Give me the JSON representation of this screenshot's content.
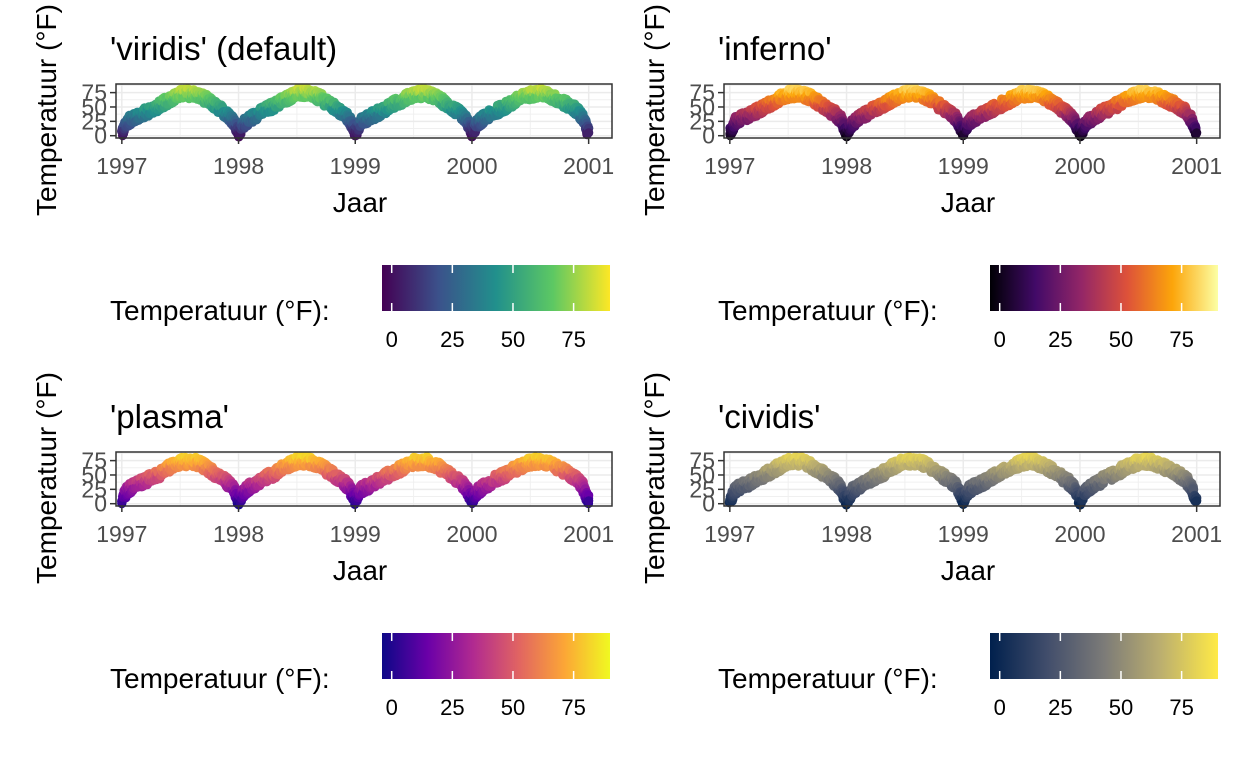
{
  "chart_data": [
    {
      "type": "scatter",
      "title": "'viridis' (default)",
      "xlabel": "Jaar",
      "ylabel": "Temperatuur (°F)",
      "xlim": [
        1996.95,
        2001.2
      ],
      "ylim": [
        -4,
        90
      ],
      "x_ticks": [
        "1997",
        "1998",
        "1999",
        "2000",
        "2001"
      ],
      "y_ticks": [
        "0",
        "25",
        "50",
        "75"
      ],
      "legend": {
        "title": "Temperatuur (°F):",
        "position": "bottom",
        "ticks": [
          "0",
          "25",
          "50",
          "75"
        ],
        "range": [
          -4,
          90
        ]
      },
      "palette": [
        "#440154",
        "#3b528b",
        "#21908c",
        "#5dc863",
        "#fde725"
      ],
      "series": [
        {
          "x": [
            1997.0,
            1997.05,
            1997.1,
            1997.2,
            1997.3,
            1997.4,
            1997.5,
            1997.6,
            1997.7,
            1997.8,
            1997.9,
            1997.95,
            1998.0,
            1998.05,
            1998.1,
            1998.2,
            1998.3,
            1998.4,
            1998.5,
            1998.6,
            1998.7,
            1998.8,
            1998.9,
            1998.95,
            1999.0,
            1999.05,
            1999.1,
            1999.2,
            1999.3,
            1999.4,
            1999.5,
            1999.6,
            1999.7,
            1999.8,
            1999.9,
            1999.95,
            2000.0,
            2000.05,
            2000.1,
            2000.2,
            2000.3,
            2000.4,
            2000.5,
            2000.6,
            2000.7,
            2000.8,
            2000.9,
            2000.95,
            2001.0
          ],
          "y": [
            5,
            25,
            30,
            40,
            50,
            62,
            72,
            74,
            66,
            52,
            38,
            28,
            5,
            22,
            30,
            42,
            52,
            64,
            74,
            74,
            66,
            52,
            38,
            28,
            5,
            25,
            30,
            40,
            52,
            62,
            72,
            74,
            66,
            52,
            38,
            28,
            5,
            22,
            30,
            42,
            52,
            64,
            72,
            74,
            66,
            56,
            44,
            30,
            5
          ]
        }
      ]
    },
    {
      "type": "scatter",
      "title": "'inferno'",
      "xlabel": "Jaar",
      "ylabel": "Temperatuur (°F)",
      "xlim": [
        1996.95,
        2001.2
      ],
      "ylim": [
        -4,
        90
      ],
      "x_ticks": [
        "1997",
        "1998",
        "1999",
        "2000",
        "2001"
      ],
      "y_ticks": [
        "0",
        "25",
        "50",
        "75"
      ],
      "legend": {
        "title": "Temperatuur (°F):",
        "position": "bottom",
        "ticks": [
          "0",
          "25",
          "50",
          "75"
        ],
        "range": [
          -4,
          90
        ]
      },
      "palette": [
        "#000004",
        "#420a68",
        "#932667",
        "#dd513a",
        "#fca50a",
        "#fcffa4"
      ],
      "series": [
        {
          "x": [
            1997.0,
            1997.05,
            1997.1,
            1997.2,
            1997.3,
            1997.4,
            1997.5,
            1997.6,
            1997.7,
            1997.8,
            1997.9,
            1997.95,
            1998.0,
            1998.05,
            1998.1,
            1998.2,
            1998.3,
            1998.4,
            1998.5,
            1998.6,
            1998.7,
            1998.8,
            1998.9,
            1998.95,
            1999.0,
            1999.05,
            1999.1,
            1999.2,
            1999.3,
            1999.4,
            1999.5,
            1999.6,
            1999.7,
            1999.8,
            1999.9,
            1999.95,
            2000.0,
            2000.05,
            2000.1,
            2000.2,
            2000.3,
            2000.4,
            2000.5,
            2000.6,
            2000.7,
            2000.8,
            2000.9,
            2000.95,
            2001.0
          ],
          "y": [
            5,
            25,
            30,
            40,
            50,
            62,
            72,
            74,
            66,
            52,
            38,
            28,
            5,
            22,
            30,
            42,
            52,
            64,
            74,
            74,
            66,
            52,
            38,
            28,
            5,
            25,
            30,
            40,
            52,
            62,
            72,
            74,
            66,
            52,
            38,
            28,
            5,
            22,
            30,
            42,
            52,
            64,
            72,
            74,
            66,
            56,
            44,
            30,
            5
          ]
        }
      ]
    },
    {
      "type": "scatter",
      "title": "'plasma'",
      "xlabel": "Jaar",
      "ylabel": "Temperatuur (°F)",
      "xlim": [
        1996.95,
        2001.2
      ],
      "ylim": [
        -4,
        90
      ],
      "x_ticks": [
        "1997",
        "1998",
        "1999",
        "2000",
        "2001"
      ],
      "y_ticks": [
        "0",
        "25",
        "50",
        "75"
      ],
      "legend": {
        "title": "Temperatuur (°F):",
        "position": "bottom",
        "ticks": [
          "0",
          "25",
          "50",
          "75"
        ],
        "range": [
          -4,
          90
        ]
      },
      "palette": [
        "#0d0887",
        "#6a00a8",
        "#b12a90",
        "#e16462",
        "#fca636",
        "#f0f921"
      ],
      "series": [
        {
          "x": [
            1997.0,
            1997.05,
            1997.1,
            1997.2,
            1997.3,
            1997.4,
            1997.5,
            1997.6,
            1997.7,
            1997.8,
            1997.9,
            1997.95,
            1998.0,
            1998.05,
            1998.1,
            1998.2,
            1998.3,
            1998.4,
            1998.5,
            1998.6,
            1998.7,
            1998.8,
            1998.9,
            1998.95,
            1999.0,
            1999.05,
            1999.1,
            1999.2,
            1999.3,
            1999.4,
            1999.5,
            1999.6,
            1999.7,
            1999.8,
            1999.9,
            1999.95,
            2000.0,
            2000.05,
            2000.1,
            2000.2,
            2000.3,
            2000.4,
            2000.5,
            2000.6,
            2000.7,
            2000.8,
            2000.9,
            2000.95,
            2001.0
          ],
          "y": [
            5,
            25,
            30,
            40,
            50,
            62,
            72,
            74,
            66,
            52,
            38,
            28,
            5,
            22,
            30,
            42,
            52,
            64,
            74,
            74,
            66,
            52,
            38,
            28,
            5,
            25,
            30,
            40,
            52,
            62,
            72,
            74,
            66,
            52,
            38,
            28,
            5,
            22,
            30,
            42,
            52,
            64,
            72,
            74,
            66,
            56,
            44,
            30,
            5
          ]
        }
      ]
    },
    {
      "type": "scatter",
      "title": "'cividis'",
      "xlabel": "Jaar",
      "ylabel": "Temperatuur (°F)",
      "xlim": [
        1996.95,
        2001.2
      ],
      "ylim": [
        -4,
        90
      ],
      "x_ticks": [
        "1997",
        "1998",
        "1999",
        "2000",
        "2001"
      ],
      "y_ticks": [
        "0",
        "25",
        "50",
        "75"
      ],
      "legend": {
        "title": "Temperatuur (°F):",
        "position": "bottom",
        "ticks": [
          "0",
          "25",
          "50",
          "75"
        ],
        "range": [
          -4,
          90
        ]
      },
      "palette": [
        "#00204d",
        "#414d6b",
        "#7c7b78",
        "#bcaf6f",
        "#ffea46"
      ],
      "series": [
        {
          "x": [
            1997.0,
            1997.05,
            1997.1,
            1997.2,
            1997.3,
            1997.4,
            1997.5,
            1997.6,
            1997.7,
            1997.8,
            1997.9,
            1997.95,
            1998.0,
            1998.05,
            1998.1,
            1998.2,
            1998.3,
            1998.4,
            1998.5,
            1998.6,
            1998.7,
            1998.8,
            1998.9,
            1998.95,
            1999.0,
            1999.05,
            1999.1,
            1999.2,
            1999.3,
            1999.4,
            1999.5,
            1999.6,
            1999.7,
            1999.8,
            1999.9,
            1999.95,
            2000.0,
            2000.05,
            2000.1,
            2000.2,
            2000.3,
            2000.4,
            2000.5,
            2000.6,
            2000.7,
            2000.8,
            2000.9,
            2000.95,
            2001.0
          ],
          "y": [
            5,
            25,
            30,
            40,
            50,
            62,
            72,
            74,
            66,
            52,
            38,
            28,
            5,
            22,
            30,
            42,
            52,
            64,
            74,
            74,
            66,
            52,
            38,
            28,
            5,
            25,
            30,
            40,
            52,
            62,
            72,
            74,
            66,
            52,
            38,
            28,
            5,
            22,
            30,
            42,
            52,
            64,
            72,
            74,
            66,
            56,
            44,
            30,
            5
          ]
        }
      ]
    }
  ]
}
